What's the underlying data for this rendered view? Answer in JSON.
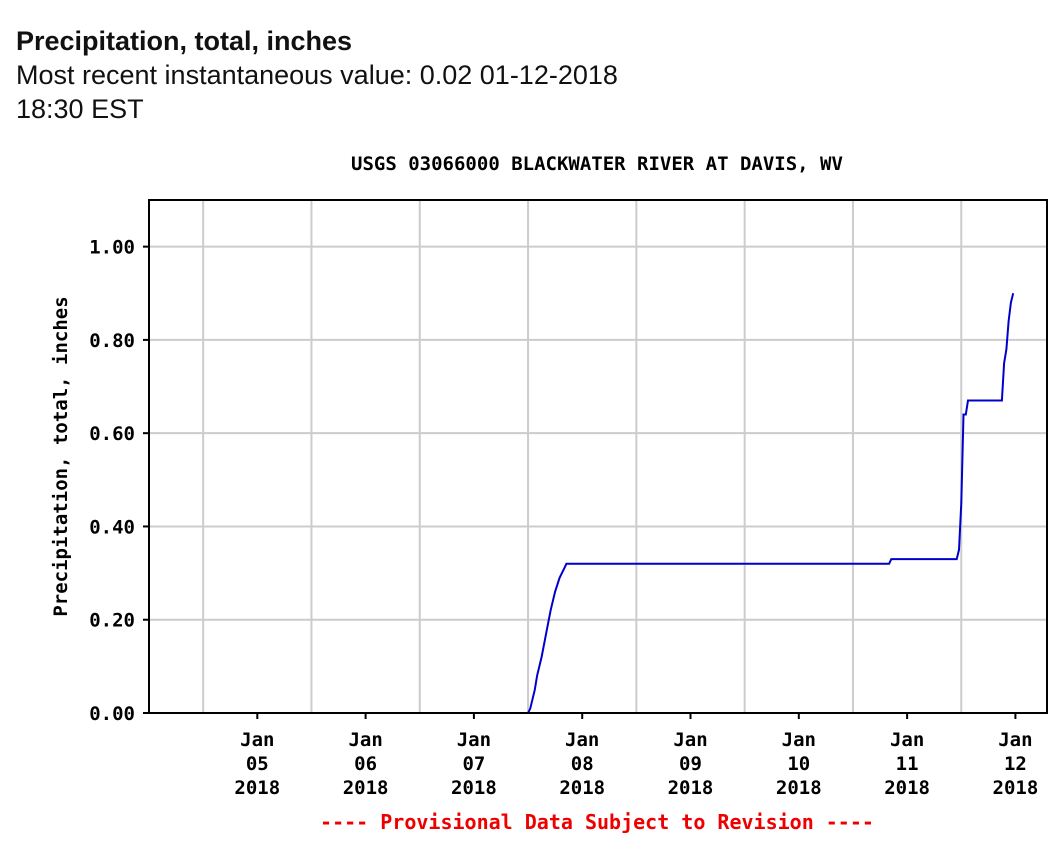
{
  "header": {
    "title": "Precipitation, total, inches",
    "subtitle": "Most recent instantaneous value: 0.02 01-12-2018   18:30 EST"
  },
  "chart_data": {
    "type": "line",
    "title": "USGS 03066000 BLACKWATER RIVER AT DAVIS, WV",
    "xlabel": "",
    "ylabel": "Precipitation, total, inches",
    "footer": "---- Provisional Data Subject to Revision ----",
    "x_ticks": [
      {
        "date": "2018-01-05",
        "label": [
          "Jan",
          "05",
          "2018"
        ]
      },
      {
        "date": "2018-01-06",
        "label": [
          "Jan",
          "06",
          "2018"
        ]
      },
      {
        "date": "2018-01-07",
        "label": [
          "Jan",
          "07",
          "2018"
        ]
      },
      {
        "date": "2018-01-08",
        "label": [
          "Jan",
          "08",
          "2018"
        ]
      },
      {
        "date": "2018-01-09",
        "label": [
          "Jan",
          "09",
          "2018"
        ]
      },
      {
        "date": "2018-01-10",
        "label": [
          "Jan",
          "10",
          "2018"
        ]
      },
      {
        "date": "2018-01-11",
        "label": [
          "Jan",
          "11",
          "2018"
        ]
      },
      {
        "date": "2018-01-12",
        "label": [
          "Jan",
          "12",
          "2018"
        ]
      }
    ],
    "y_ticks": [
      "0.00",
      "0.20",
      "0.40",
      "0.60",
      "0.80",
      "1.00"
    ],
    "xlim": [
      "2018-01-04 12:00",
      "2018-01-12 19:00"
    ],
    "ylim": [
      0,
      1.1
    ],
    "grid": true,
    "series": [
      {
        "color": "#0000cc",
        "points": [
          [
            "2018-01-04 12:00",
            0.0
          ],
          [
            "2018-01-08 00:00",
            0.0
          ],
          [
            "2018-01-08 00:30",
            0.01
          ],
          [
            "2018-01-08 01:30",
            0.05
          ],
          [
            "2018-01-08 02:00",
            0.08
          ],
          [
            "2018-01-08 03:00",
            0.12
          ],
          [
            "2018-01-08 04:00",
            0.17
          ],
          [
            "2018-01-08 05:00",
            0.22
          ],
          [
            "2018-01-08 06:00",
            0.26
          ],
          [
            "2018-01-08 07:00",
            0.29
          ],
          [
            "2018-01-08 08:00",
            0.31
          ],
          [
            "2018-01-08 08:30",
            0.32
          ],
          [
            "2018-01-11 08:00",
            0.32
          ],
          [
            "2018-01-11 08:30",
            0.33
          ],
          [
            "2018-01-11 23:00",
            0.33
          ],
          [
            "2018-01-11 23:30",
            0.35
          ],
          [
            "2018-01-12 00:00",
            0.45
          ],
          [
            "2018-01-12 00:30",
            0.64
          ],
          [
            "2018-01-12 01:00",
            0.64
          ],
          [
            "2018-01-12 01:30",
            0.67
          ],
          [
            "2018-01-12 09:00",
            0.67
          ],
          [
            "2018-01-12 09:30",
            0.75
          ],
          [
            "2018-01-12 10:00",
            0.78
          ],
          [
            "2018-01-12 10:30",
            0.84
          ],
          [
            "2018-01-12 11:00",
            0.88
          ],
          [
            "2018-01-12 11:30",
            0.9
          ]
        ]
      }
    ]
  }
}
